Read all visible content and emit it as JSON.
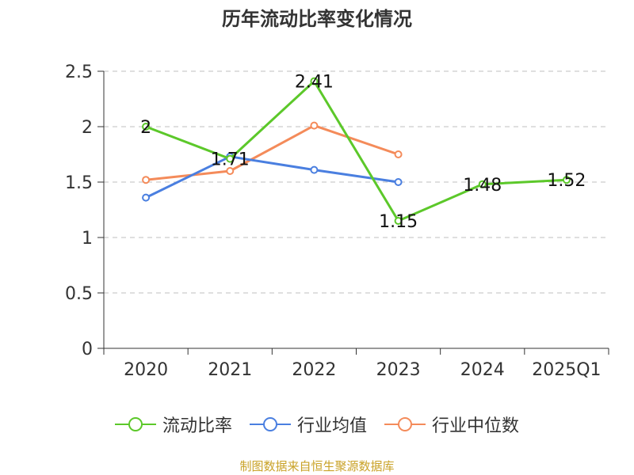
{
  "chart_data": {
    "type": "line",
    "title": "历年流动比率变化情况",
    "categories": [
      "2020",
      "2021",
      "2022",
      "2023",
      "2024",
      "2025Q1"
    ],
    "ylim": [
      0,
      2.5
    ],
    "yticks": [
      "0",
      "0.5",
      "1",
      "1.5",
      "2",
      "2.5"
    ],
    "grid": true,
    "legend_position": "bottom",
    "series": [
      {
        "name": "流动比率",
        "color": "#5cc82a",
        "values": [
          2,
          1.71,
          2.41,
          1.15,
          1.48,
          1.52
        ],
        "labels": [
          "2",
          "1.71",
          "2.41",
          "1.15",
          "1.48",
          "1.52"
        ]
      },
      {
        "name": "行业均值",
        "color": "#4a7fe0",
        "values": [
          1.36,
          1.73,
          1.61,
          1.5,
          null,
          null
        ]
      },
      {
        "name": "行业中位数",
        "color": "#f48b5a",
        "values": [
          1.52,
          1.6,
          2.01,
          1.75,
          null,
          null
        ]
      }
    ]
  },
  "footer": {
    "source": "制图数据来自恒生聚源数据库"
  }
}
